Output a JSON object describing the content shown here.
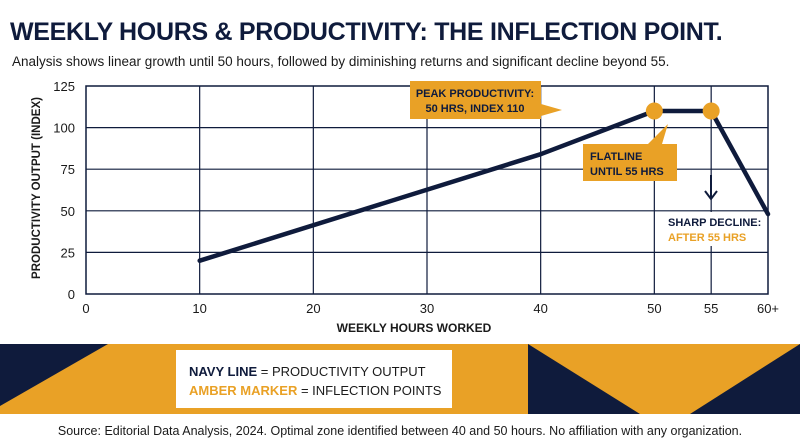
{
  "header": {
    "title": "WEEKLY HOURS & PRODUCTIVITY: THE INFLECTION POINT.",
    "subtitle": "Analysis shows linear growth until 50 hours, followed by diminishing returns and significant decline beyond 55."
  },
  "chart_data": {
    "type": "line",
    "xlabel": "WEEKLY HOURS WORKED",
    "ylabel": "PRODUCTIVITY OUTPUT (INDEX)",
    "x_ticks": [
      "0",
      "10",
      "20",
      "30",
      "40",
      "50",
      "55",
      "60+"
    ],
    "y_ticks": [
      "0",
      "25",
      "50",
      "75",
      "100",
      "125"
    ],
    "xlim": [
      0,
      60
    ],
    "ylim": [
      0,
      125
    ],
    "grid": true,
    "series": [
      {
        "name": "PRODUCTIVITY OUTPUT",
        "color": "#0f1b3c",
        "x": [
          10,
          40,
          50,
          55,
          60
        ],
        "y": [
          20,
          84,
          110,
          110,
          48
        ]
      }
    ],
    "markers": [
      {
        "x": 50,
        "y": 110,
        "color": "#e9a126"
      },
      {
        "x": 55,
        "y": 110,
        "color": "#e9a126"
      }
    ],
    "annotations": [
      {
        "lines": [
          "PEAK PRODUCTIVITY:",
          "50 HRS, INDEX 110"
        ],
        "style": "amber-box"
      },
      {
        "lines": [
          "FLATLINE",
          "UNTIL 55 HRS"
        ],
        "style": "amber-box"
      },
      {
        "lines": [
          "SHARP DECLINE:",
          "AFTER 55 HRS"
        ],
        "style": "plain"
      }
    ]
  },
  "legend": {
    "navy_label": "NAVY LINE",
    "navy_text": " = PRODUCTIVITY OUTPUT",
    "amber_label": "AMBER MARKER",
    "amber_text": " = INFLECTION POINTS"
  },
  "footer": {
    "source": "Source: Editorial Data Analysis, 2024. Optimal zone identified between 40 and 50 hours. No affiliation with any organization."
  },
  "colors": {
    "navy": "#0f1b3c",
    "amber": "#e9a126",
    "grid": "#0f1b3c"
  }
}
